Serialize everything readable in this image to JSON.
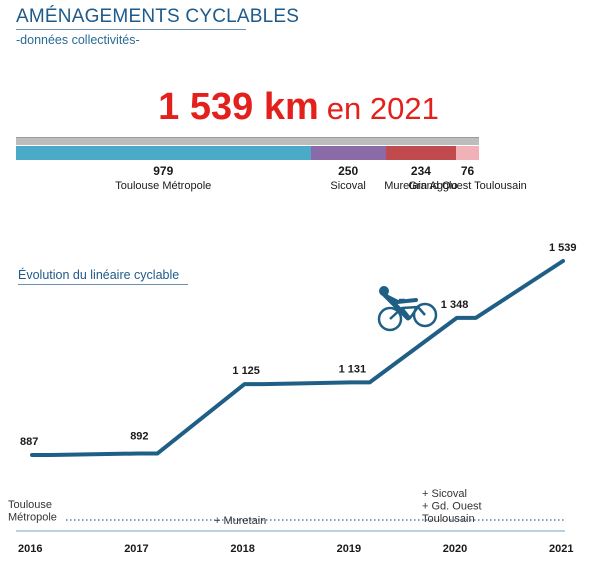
{
  "header": {
    "title": "AMÉNAGEMENTS CYCLABLES",
    "subtitle": "-données collectivités-"
  },
  "headline": {
    "value": "1 539 km",
    "suffix": "en 2021"
  },
  "breakdown": {
    "total": 1539,
    "segments": [
      {
        "value": 979,
        "label": "Toulouse Métropole",
        "color": "#4aaac8"
      },
      {
        "value": 250,
        "label": "Sicoval",
        "color": "#8b6aa8"
      },
      {
        "value": 234,
        "label": "Muretain Agglo",
        "color": "#c04a4e"
      },
      {
        "value": 76,
        "label": "Grand Ouest Toulousain",
        "color": "#f0b2b8"
      }
    ]
  },
  "section": {
    "title": "Évolution du linéaire cyclable"
  },
  "chart_data": {
    "type": "line",
    "title": "Évolution du linéaire cyclable",
    "x": [
      2016,
      2017,
      2018,
      2019,
      2020,
      2021
    ],
    "series": [
      {
        "values": [
          887,
          892,
          1125,
          1131,
          1348,
          1539
        ],
        "color": "#1f5f86"
      }
    ],
    "value_labels": [
      "887",
      "892",
      "1 125",
      "1 131",
      "1 348",
      "1 539"
    ],
    "tick_labels": [
      "2016",
      "2017",
      "2018",
      "2019",
      "2020",
      "2021"
    ],
    "grid": false,
    "annotations": [
      {
        "year": 2016,
        "lines": [
          "Toulouse",
          "Métropole"
        ]
      },
      {
        "year": 2018,
        "lines": [
          "+ Muretain"
        ]
      },
      {
        "year": 2020,
        "lines": [
          "+ Sicoval",
          "+ Gd. Ouest",
          "Toulousain"
        ]
      }
    ],
    "icon": "cyclist-icon"
  }
}
